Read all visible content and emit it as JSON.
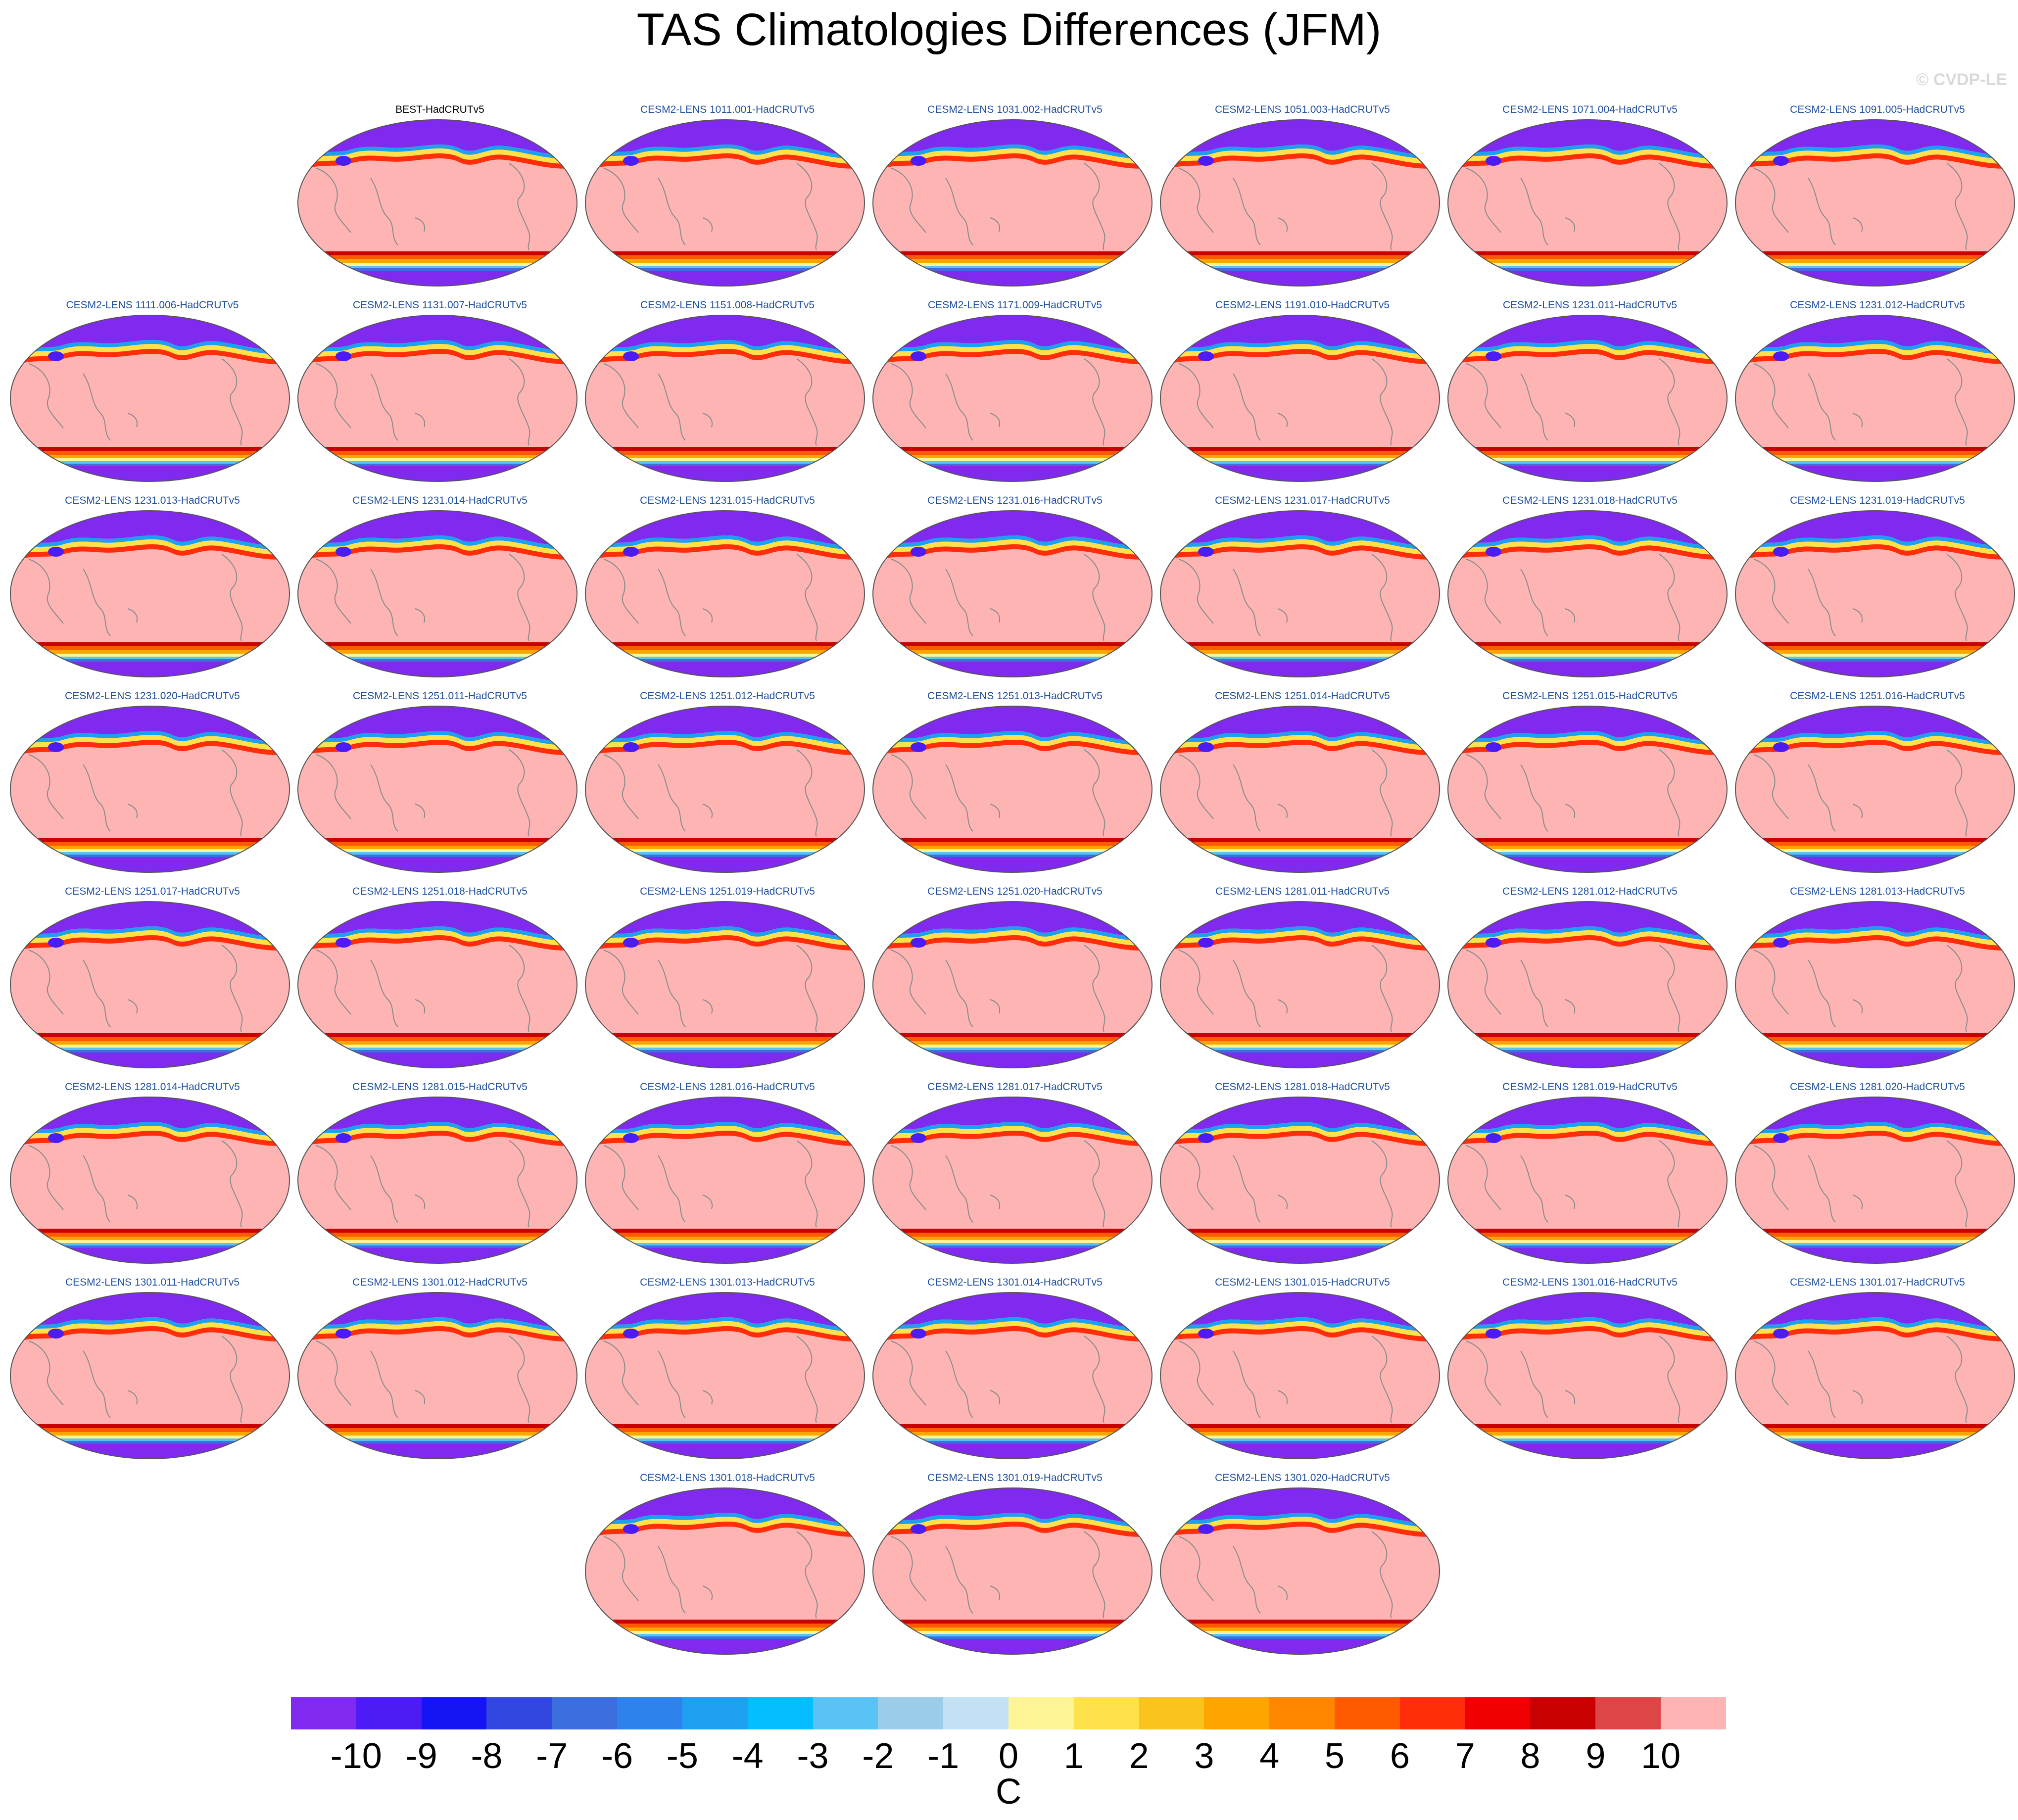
{
  "title": "TAS Climatologies Differences (JFM)",
  "copyright": "© CVDP-LE",
  "colors": {
    "obs_title": "#000000",
    "model_title": "#1f4f9f",
    "land_outline": "#8a8a8a",
    "globe_outline": "#555555"
  },
  "panels": [
    {
      "title": "BEST-HadCRUTv5",
      "kind": "obs"
    },
    {
      "title": "CESM2-LENS 1011.001-HadCRUTv5",
      "kind": "model"
    },
    {
      "title": "CESM2-LENS 1031.002-HadCRUTv5",
      "kind": "model"
    },
    {
      "title": "CESM2-LENS 1051.003-HadCRUTv5",
      "kind": "model"
    },
    {
      "title": "CESM2-LENS 1071.004-HadCRUTv5",
      "kind": "model"
    },
    {
      "title": "CESM2-LENS 1091.005-HadCRUTv5",
      "kind": "model"
    },
    {
      "title": "CESM2-LENS 1111.006-HadCRUTv5",
      "kind": "model"
    },
    {
      "title": "CESM2-LENS 1131.007-HadCRUTv5",
      "kind": "model"
    },
    {
      "title": "CESM2-LENS 1151.008-HadCRUTv5",
      "kind": "model"
    },
    {
      "title": "CESM2-LENS 1171.009-HadCRUTv5",
      "kind": "model"
    },
    {
      "title": "CESM2-LENS 1191.010-HadCRUTv5",
      "kind": "model"
    },
    {
      "title": "CESM2-LENS 1231.011-HadCRUTv5",
      "kind": "model"
    },
    {
      "title": "CESM2-LENS 1231.012-HadCRUTv5",
      "kind": "model"
    },
    {
      "title": "CESM2-LENS 1231.013-HadCRUTv5",
      "kind": "model"
    },
    {
      "title": "CESM2-LENS 1231.014-HadCRUTv5",
      "kind": "model"
    },
    {
      "title": "CESM2-LENS 1231.015-HadCRUTv5",
      "kind": "model"
    },
    {
      "title": "CESM2-LENS 1231.016-HadCRUTv5",
      "kind": "model"
    },
    {
      "title": "CESM2-LENS 1231.017-HadCRUTv5",
      "kind": "model"
    },
    {
      "title": "CESM2-LENS 1231.018-HadCRUTv5",
      "kind": "model"
    },
    {
      "title": "CESM2-LENS 1231.019-HadCRUTv5",
      "kind": "model"
    },
    {
      "title": "CESM2-LENS 1231.020-HadCRUTv5",
      "kind": "model"
    },
    {
      "title": "CESM2-LENS 1251.011-HadCRUTv5",
      "kind": "model"
    },
    {
      "title": "CESM2-LENS 1251.012-HadCRUTv5",
      "kind": "model"
    },
    {
      "title": "CESM2-LENS 1251.013-HadCRUTv5",
      "kind": "model"
    },
    {
      "title": "CESM2-LENS 1251.014-HadCRUTv5",
      "kind": "model"
    },
    {
      "title": "CESM2-LENS 1251.015-HadCRUTv5",
      "kind": "model"
    },
    {
      "title": "CESM2-LENS 1251.016-HadCRUTv5",
      "kind": "model"
    },
    {
      "title": "CESM2-LENS 1251.017-HadCRUTv5",
      "kind": "model"
    },
    {
      "title": "CESM2-LENS 1251.018-HadCRUTv5",
      "kind": "model"
    },
    {
      "title": "CESM2-LENS 1251.019-HadCRUTv5",
      "kind": "model"
    },
    {
      "title": "CESM2-LENS 1251.020-HadCRUTv5",
      "kind": "model"
    },
    {
      "title": "CESM2-LENS 1281.011-HadCRUTv5",
      "kind": "model"
    },
    {
      "title": "CESM2-LENS 1281.012-HadCRUTv5",
      "kind": "model"
    },
    {
      "title": "CESM2-LENS 1281.013-HadCRUTv5",
      "kind": "model"
    },
    {
      "title": "CESM2-LENS 1281.014-HadCRUTv5",
      "kind": "model"
    },
    {
      "title": "CESM2-LENS 1281.015-HadCRUTv5",
      "kind": "model"
    },
    {
      "title": "CESM2-LENS 1281.016-HadCRUTv5",
      "kind": "model"
    },
    {
      "title": "CESM2-LENS 1281.017-HadCRUTv5",
      "kind": "model"
    },
    {
      "title": "CESM2-LENS 1281.018-HadCRUTv5",
      "kind": "model"
    },
    {
      "title": "CESM2-LENS 1281.019-HadCRUTv5",
      "kind": "model"
    },
    {
      "title": "CESM2-LENS 1281.020-HadCRUTv5",
      "kind": "model"
    },
    {
      "title": "CESM2-LENS 1301.011-HadCRUTv5",
      "kind": "model"
    },
    {
      "title": "CESM2-LENS 1301.012-HadCRUTv5",
      "kind": "model"
    },
    {
      "title": "CESM2-LENS 1301.013-HadCRUTv5",
      "kind": "model"
    },
    {
      "title": "CESM2-LENS 1301.014-HadCRUTv5",
      "kind": "model"
    },
    {
      "title": "CESM2-LENS 1301.015-HadCRUTv5",
      "kind": "model"
    },
    {
      "title": "CESM2-LENS 1301.016-HadCRUTv5",
      "kind": "model"
    },
    {
      "title": "CESM2-LENS 1301.017-HadCRUTv5",
      "kind": "model"
    },
    {
      "title": "CESM2-LENS 1301.018-HadCRUTv5",
      "kind": "model"
    },
    {
      "title": "CESM2-LENS 1301.019-HadCRUTv5",
      "kind": "model"
    },
    {
      "title": "CESM2-LENS 1301.020-HadCRUTv5",
      "kind": "model"
    }
  ],
  "colorbar": {
    "units": "C",
    "labels": [
      "-10",
      "-9",
      "-8",
      "-7",
      "-6",
      "-5",
      "-4",
      "-3",
      "-2",
      "-1",
      "0",
      "1",
      "2",
      "3",
      "4",
      "5",
      "6",
      "7",
      "8",
      "9",
      "10"
    ],
    "colors": [
      "#7f2aee",
      "#4d1cf5",
      "#1414f5",
      "#3246e0",
      "#3c6ede",
      "#2d82eb",
      "#1ea0f0",
      "#05beff",
      "#5ac3f5",
      "#9bcdea",
      "#c3e1f5",
      "#fff596",
      "#ffe14b",
      "#fac31e",
      "#ffa500",
      "#ff8700",
      "#ff5a00",
      "#ff2d0a",
      "#f00000",
      "#c80000",
      "#dc4646",
      "#ffb4b4"
    ]
  }
}
